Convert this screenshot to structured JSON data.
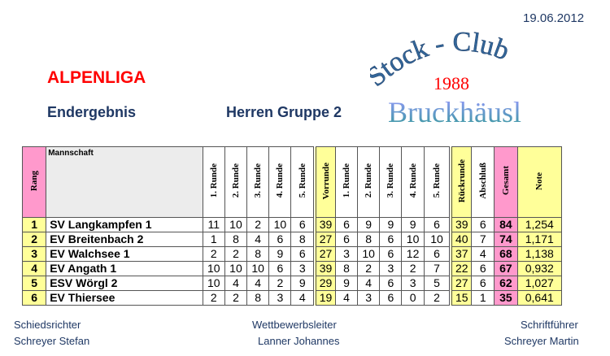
{
  "date": "19.06.2012",
  "league": "ALPENLIGA",
  "subtitle": "Endergebnis",
  "group": "Herren Gruppe 2",
  "logo": {
    "line1": "Stock - Club",
    "year": "1988",
    "name": "Bruckhäusl"
  },
  "table": {
    "headers": [
      "Rang",
      "Mannschaft",
      "1. Runde",
      "2. Runde",
      "3. Runde",
      "4. Runde",
      "5. Runde",
      "Vorrunde",
      "1. Runde",
      "2. Runde",
      "3. Runde",
      "4. Runde",
      "5. Runde",
      "Rückrunde",
      "Abschluß",
      "Gesamt",
      "Note"
    ],
    "rows": [
      [
        "1",
        "SV Langkampfen 1",
        "11",
        "10",
        "2",
        "10",
        "6",
        "39",
        "6",
        "9",
        "9",
        "9",
        "6",
        "39",
        "6",
        "84",
        "1,254"
      ],
      [
        "2",
        "EV Breitenbach 2",
        "1",
        "8",
        "4",
        "6",
        "8",
        "27",
        "6",
        "8",
        "6",
        "10",
        "10",
        "40",
        "7",
        "74",
        "1,171"
      ],
      [
        "3",
        "EV Walchsee 1",
        "2",
        "2",
        "8",
        "9",
        "6",
        "27",
        "3",
        "10",
        "6",
        "12",
        "6",
        "37",
        "4",
        "68",
        "1,138"
      ],
      [
        "4",
        "EV Angath 1",
        "10",
        "10",
        "10",
        "6",
        "3",
        "39",
        "8",
        "2",
        "3",
        "2",
        "7",
        "22",
        "6",
        "67",
        "0,932"
      ],
      [
        "5",
        "ESV Wörgl 2",
        "10",
        "4",
        "4",
        "2",
        "9",
        "29",
        "9",
        "4",
        "6",
        "3",
        "5",
        "27",
        "6",
        "62",
        "1,027"
      ],
      [
        "6",
        "EV Thiersee",
        "2",
        "2",
        "8",
        "3",
        "4",
        "19",
        "4",
        "3",
        "6",
        "0",
        "2",
        "15",
        "1",
        "35",
        "0,641"
      ]
    ]
  },
  "footer": {
    "referee_label": "Schiedsrichter",
    "referee": "Schreyer Stefan",
    "director_label": "Wettbewerbsleiter",
    "director": "Lanner Johannes",
    "secretary_label": "Schriftführer",
    "secretary": "Schreyer Martin"
  },
  "colors": {
    "rank": "#ff99cc",
    "highlight": "#ffff99",
    "title": "#ff0000",
    "text": "#1f3864"
  }
}
